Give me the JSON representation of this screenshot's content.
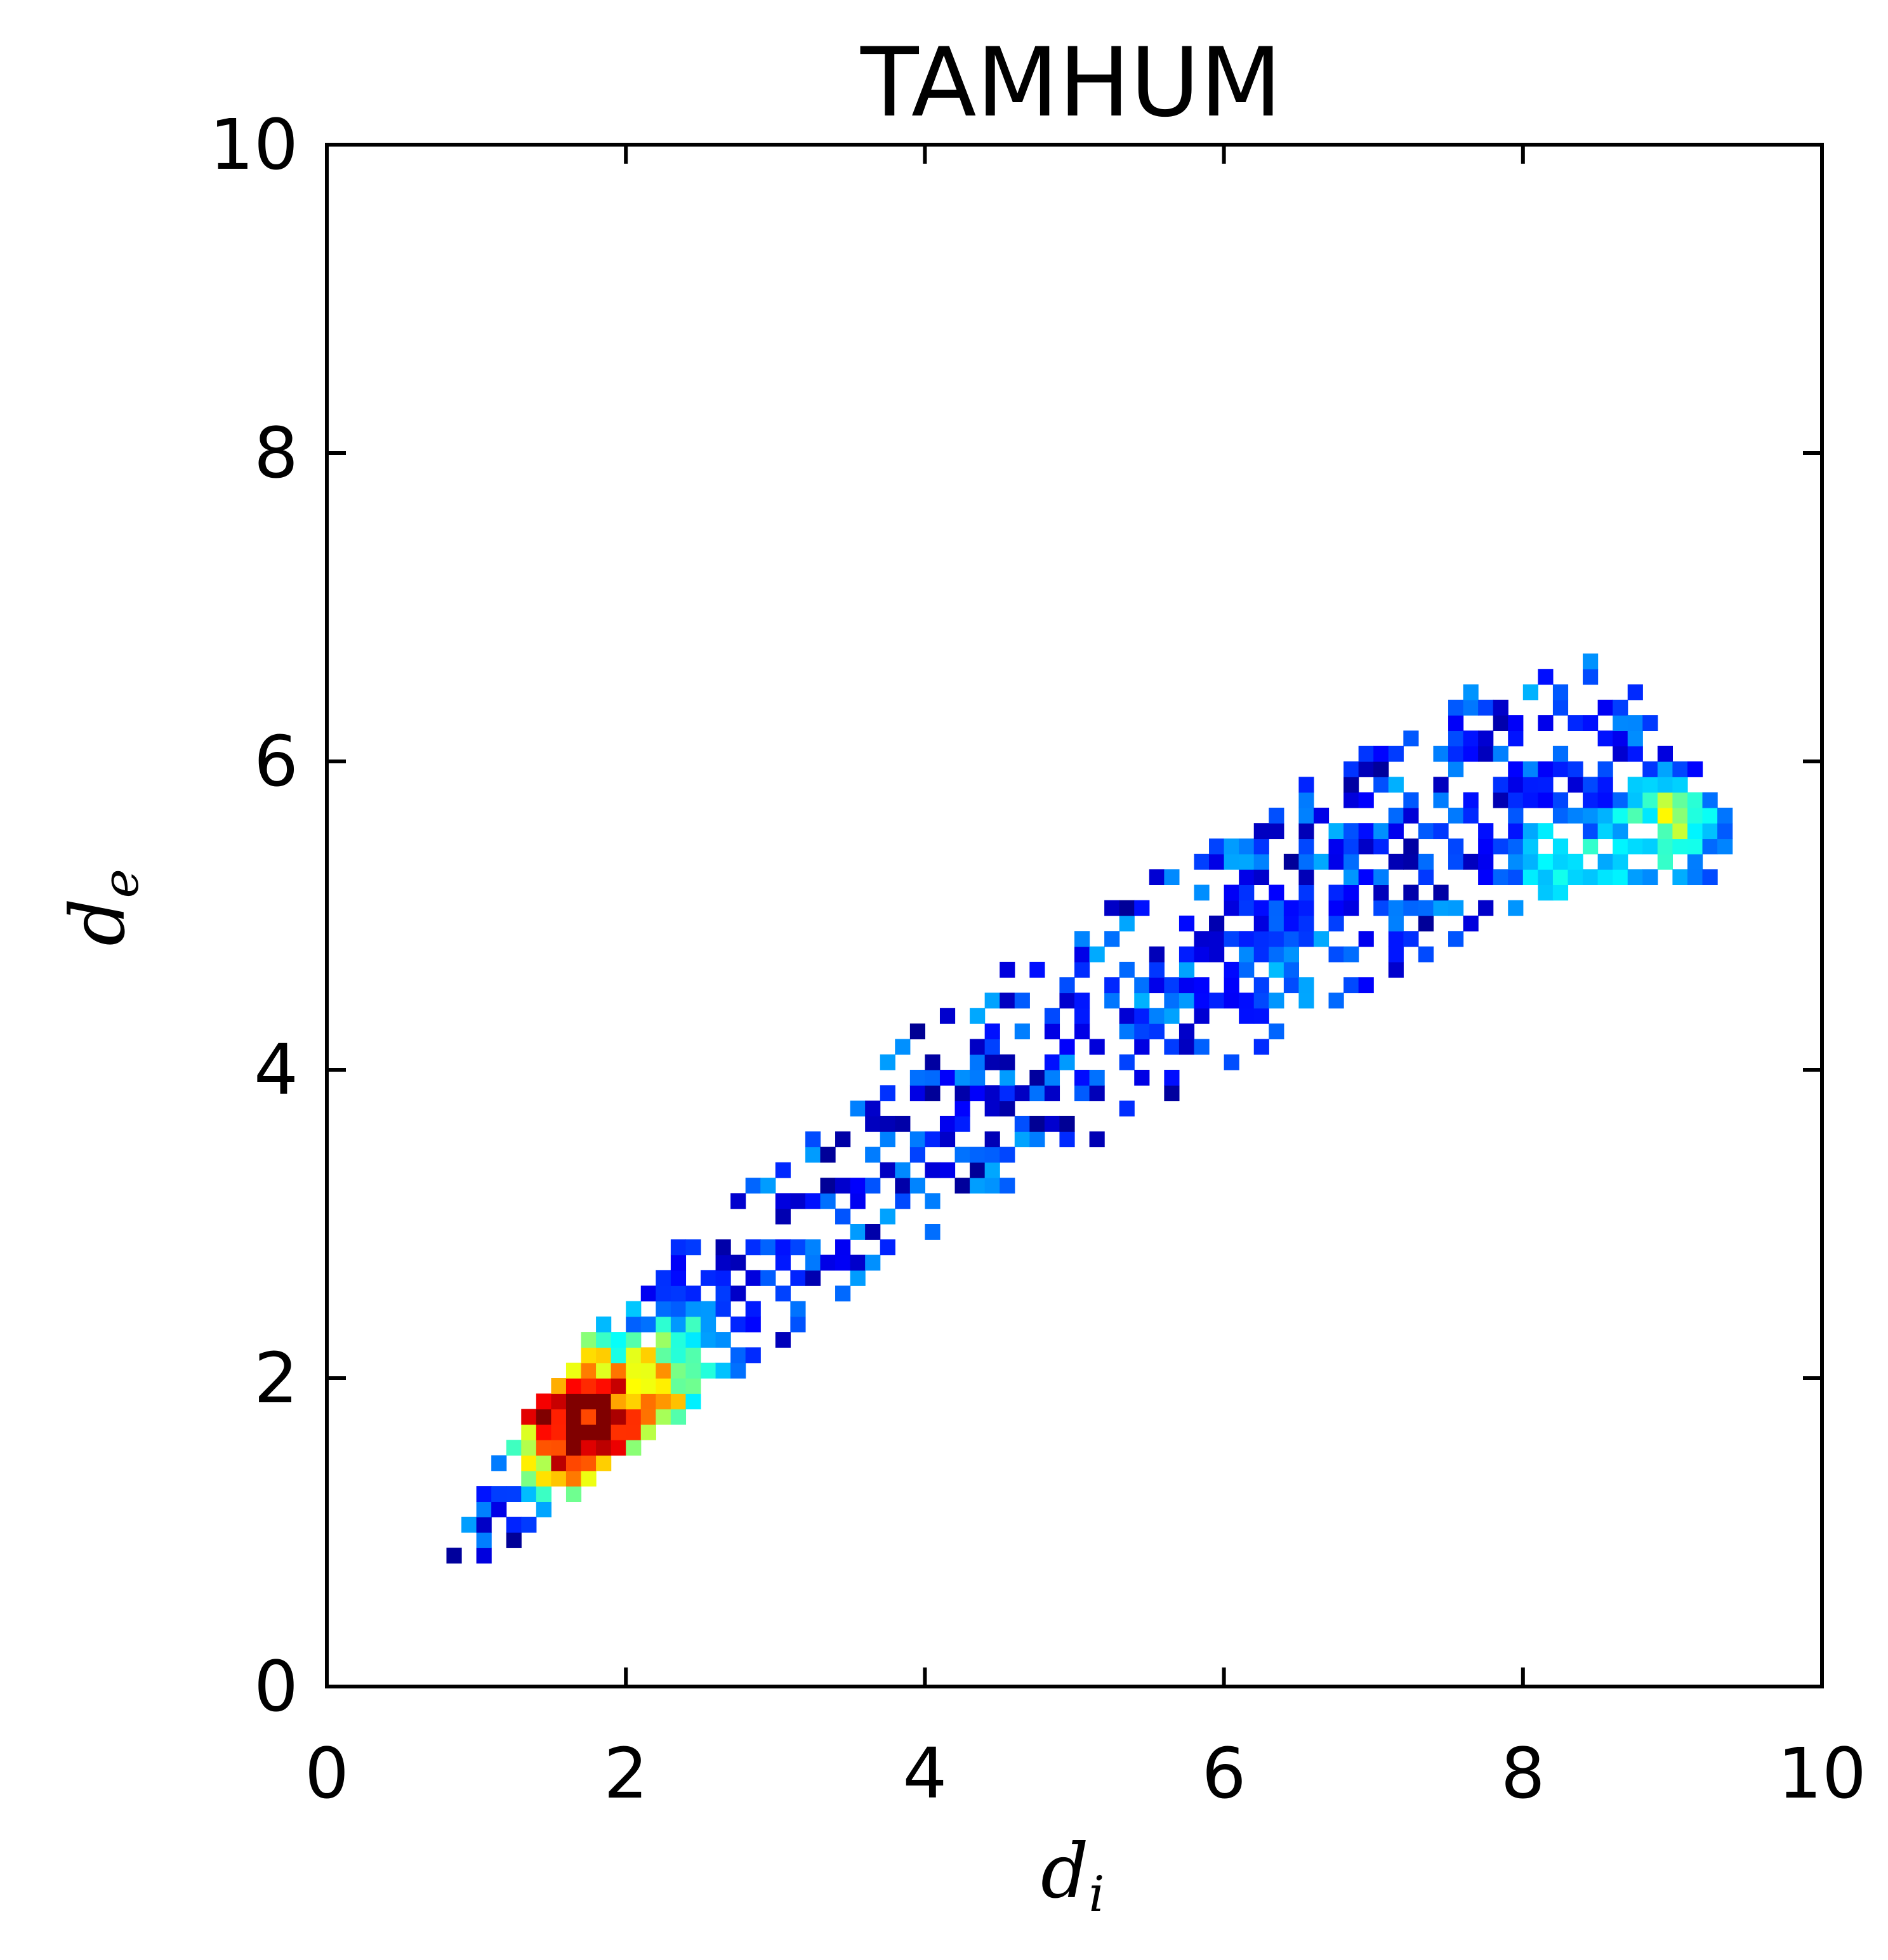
{
  "chart_data": {
    "type": "heatmap",
    "title": "TAMHUM",
    "xlabel": {
      "main": "d",
      "subscript": "i"
    },
    "ylabel": {
      "main": "d",
      "subscript": "e"
    },
    "xlim": [
      0,
      10
    ],
    "ylim": [
      0,
      10
    ],
    "x_ticks": [
      "0",
      "2",
      "4",
      "6",
      "8",
      "10"
    ],
    "y_ticks": [
      "0",
      "2",
      "4",
      "6",
      "8",
      "10"
    ],
    "grid": false,
    "colormap": "jet",
    "bin_size": 0.1,
    "density_model": {
      "ridge": [
        {
          "x": 0.8,
          "y": 0.75,
          "width": 0.1
        },
        {
          "x": 1.2,
          "y": 1.25,
          "width": 0.35
        },
        {
          "x": 2.0,
          "y": 2.05,
          "width": 0.55
        },
        {
          "x": 3.0,
          "y": 2.8,
          "width": 0.6
        },
        {
          "x": 4.0,
          "y": 3.6,
          "width": 0.7
        },
        {
          "x": 5.0,
          "y": 4.2,
          "width": 0.75
        },
        {
          "x": 6.0,
          "y": 4.75,
          "width": 0.75
        },
        {
          "x": 7.0,
          "y": 5.35,
          "width": 0.8
        },
        {
          "x": 8.0,
          "y": 5.85,
          "width": 0.85
        },
        {
          "x": 8.5,
          "y": 5.95,
          "width": 0.75
        },
        {
          "x": 9.0,
          "y": 5.7,
          "width": 0.5
        },
        {
          "x": 9.4,
          "y": 5.45,
          "width": 0.2
        }
      ],
      "hotspots": [
        {
          "x": 1.65,
          "y": 1.7,
          "peak": 1.0,
          "spread": 0.45
        },
        {
          "x": 2.3,
          "y": 2.0,
          "peak": 0.45,
          "spread": 0.5
        },
        {
          "x": 9.0,
          "y": 5.6,
          "peak": 0.45,
          "spread": 0.35
        },
        {
          "x": 8.3,
          "y": 5.3,
          "peak": 0.3,
          "spread": 0.5
        },
        {
          "x": 6.5,
          "y": 4.6,
          "peak": 0.2,
          "spread": 0.6
        }
      ]
    }
  }
}
